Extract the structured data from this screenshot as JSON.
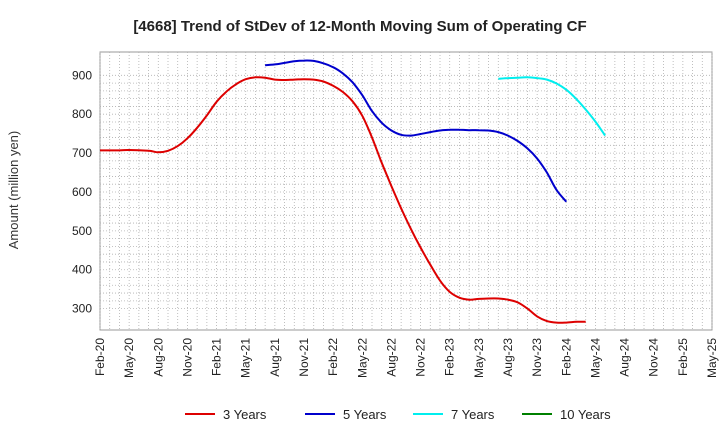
{
  "chart_data": {
    "type": "line",
    "title": "[4668]  Trend of StDev of 12-Month Moving Sum of Operating CF",
    "ylabel": "Amount (million yen)",
    "xlabel": "",
    "ylim": [
      245,
      960
    ],
    "yticks": [
      300,
      400,
      500,
      600,
      700,
      800,
      900
    ],
    "x_start": "Feb-20",
    "x_months": 63,
    "xticks": [
      "Feb-20",
      "May-20",
      "Aug-20",
      "Nov-20",
      "Feb-21",
      "May-21",
      "Aug-21",
      "Nov-21",
      "Feb-22",
      "May-22",
      "Aug-22",
      "Nov-22",
      "Feb-23",
      "May-23",
      "Aug-23",
      "Nov-23",
      "Feb-24",
      "May-24",
      "Aug-24",
      "Nov-24",
      "Feb-25",
      "May-25"
    ],
    "grid": true,
    "legend_position": "bottom",
    "series": [
      {
        "name": "3 Years",
        "color": "#dd0000",
        "points": [
          [
            "Feb-20",
            707
          ],
          [
            "Apr-20",
            707
          ],
          [
            "May-20",
            708
          ],
          [
            "Jul-20",
            706
          ],
          [
            "Aug-20",
            702
          ],
          [
            "Sep-20",
            706
          ],
          [
            "Oct-20",
            718
          ],
          [
            "Nov-20",
            738
          ],
          [
            "Dec-20",
            765
          ],
          [
            "Jan-21",
            797
          ],
          [
            "Feb-21",
            832
          ],
          [
            "Mar-21",
            858
          ],
          [
            "Apr-21",
            877
          ],
          [
            "May-21",
            890
          ],
          [
            "Jun-21",
            895
          ],
          [
            "Jul-21",
            894
          ],
          [
            "Aug-21",
            889
          ],
          [
            "Sep-21",
            888
          ],
          [
            "Oct-21",
            889
          ],
          [
            "Nov-21",
            890
          ],
          [
            "Dec-21",
            889
          ],
          [
            "Jan-22",
            884
          ],
          [
            "Feb-22",
            873
          ],
          [
            "Mar-22",
            857
          ],
          [
            "Apr-22",
            833
          ],
          [
            "May-22",
            796
          ],
          [
            "Jun-22",
            740
          ],
          [
            "Jul-22",
            675
          ],
          [
            "Aug-22",
            615
          ],
          [
            "Sep-22",
            558
          ],
          [
            "Oct-22",
            505
          ],
          [
            "Nov-22",
            457
          ],
          [
            "Dec-22",
            413
          ],
          [
            "Jan-23",
            372
          ],
          [
            "Feb-23",
            343
          ],
          [
            "Mar-23",
            328
          ],
          [
            "Apr-23",
            323
          ],
          [
            "May-23",
            325
          ],
          [
            "Jun-23",
            326
          ],
          [
            "Jul-23",
            326
          ],
          [
            "Aug-23",
            323
          ],
          [
            "Sep-23",
            316
          ],
          [
            "Oct-23",
            300
          ],
          [
            "Nov-23",
            280
          ],
          [
            "Dec-23",
            268
          ],
          [
            "Jan-24",
            264
          ],
          [
            "Feb-24",
            264
          ],
          [
            "Mar-24",
            266
          ],
          [
            "Apr-24",
            266
          ]
        ]
      },
      {
        "name": "5 Years",
        "color": "#0000cc",
        "points": [
          [
            "Jul-21",
            926
          ],
          [
            "Aug-21",
            928
          ],
          [
            "Sep-21",
            932
          ],
          [
            "Oct-21",
            936
          ],
          [
            "Nov-21",
            938
          ],
          [
            "Dec-21",
            937
          ],
          [
            "Jan-22",
            931
          ],
          [
            "Feb-22",
            921
          ],
          [
            "Mar-22",
            905
          ],
          [
            "Apr-22",
            882
          ],
          [
            "May-22",
            849
          ],
          [
            "Jun-22",
            808
          ],
          [
            "Jul-22",
            778
          ],
          [
            "Aug-22",
            758
          ],
          [
            "Sep-22",
            747
          ],
          [
            "Oct-22",
            745
          ],
          [
            "Nov-22",
            749
          ],
          [
            "Dec-22",
            754
          ],
          [
            "Jan-23",
            758
          ],
          [
            "Feb-23",
            760
          ],
          [
            "Mar-23",
            760
          ],
          [
            "Apr-23",
            759
          ],
          [
            "May-23",
            759
          ],
          [
            "Jun-23",
            758
          ],
          [
            "Jul-23",
            754
          ],
          [
            "Aug-23",
            745
          ],
          [
            "Sep-23",
            731
          ],
          [
            "Oct-23",
            712
          ],
          [
            "Nov-23",
            686
          ],
          [
            "Dec-23",
            650
          ],
          [
            "Jan-24",
            605
          ],
          [
            "Feb-24",
            575
          ]
        ]
      },
      {
        "name": "7 Years",
        "color": "#00eeee",
        "points": [
          [
            "Jul-23",
            891
          ],
          [
            "Aug-23",
            893
          ],
          [
            "Sep-23",
            894
          ],
          [
            "Oct-23",
            895
          ],
          [
            "Nov-23",
            893
          ],
          [
            "Dec-23",
            889
          ],
          [
            "Jan-24",
            879
          ],
          [
            "Feb-24",
            863
          ],
          [
            "Mar-24",
            840
          ],
          [
            "Apr-24",
            812
          ],
          [
            "May-24",
            781
          ],
          [
            "Jun-24",
            745
          ]
        ]
      },
      {
        "name": "10 Years",
        "color": "#008000",
        "points": []
      }
    ]
  }
}
